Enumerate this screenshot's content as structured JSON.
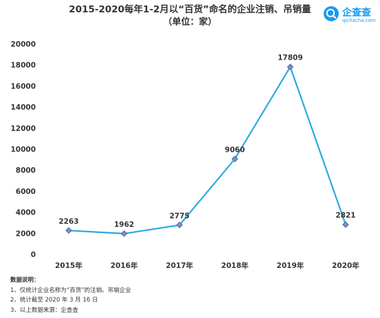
{
  "header": {
    "title_line1": "2015-2020每年1-2月以“百货”命名的企业注销、吊销量",
    "title_line2": "（单位：家）"
  },
  "logo": {
    "name": "企查查",
    "domain": "qichacha.com",
    "icon": "qichacha-magnifier-logo-icon",
    "color": "#1b9aee"
  },
  "chart_data": {
    "type": "line",
    "categories": [
      "2015年",
      "2016年",
      "2017年",
      "2018年",
      "2019年",
      "2020年"
    ],
    "series": [
      {
        "values": [
          2263,
          1962,
          2775,
          9060,
          17809,
          2821
        ]
      }
    ],
    "data_labels": [
      "2263",
      "1962",
      "2775",
      "9060",
      "17809",
      "2821"
    ],
    "yticks": [
      "0",
      "2000",
      "4000",
      "6000",
      "8000",
      "10000",
      "12000",
      "14000",
      "16000",
      "18000",
      "20000"
    ],
    "ylim": [
      0,
      20000
    ],
    "grid": false,
    "line_color": "#2aa8e0",
    "marker_color": "#7b8fc9",
    "marker": "diamond"
  },
  "notes": {
    "heading": "数据说明：",
    "items": [
      "1、仅统计企业名称为“百货”的注销、吊销企业",
      "2、统计截至 2020 年 3 月 16 日",
      "3、以上数据来源：企查查"
    ]
  }
}
